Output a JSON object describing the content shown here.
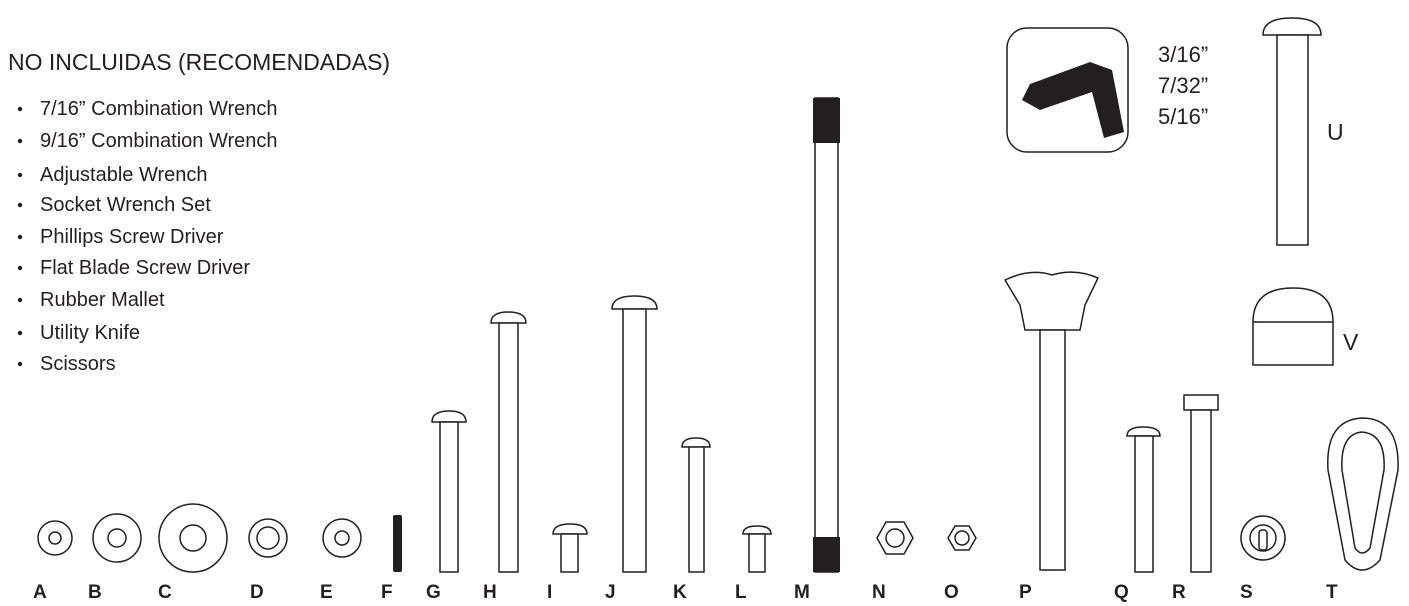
{
  "header": {
    "title": "NO INCLUIDAS (RECOMENDADAS)"
  },
  "tools": [
    "7/16” Combination Wrench",
    "9/16” Combination Wrench",
    "Adjustable Wrench",
    "Socket Wrench Set",
    "Phillips Screw Driver",
    "Flat Blade Screw Driver",
    "Rubber Mallet",
    "Utility Knife",
    "Scissors"
  ],
  "hex_keys": [
    "3/16”",
    "7/32”",
    "5/16”"
  ],
  "parts": [
    "A",
    "B",
    "C",
    "D",
    "E",
    "F",
    "G",
    "H",
    "I",
    "J",
    "K",
    "L",
    "M",
    "N",
    "O",
    "P",
    "Q",
    "R",
    "S",
    "T",
    "U",
    "V"
  ]
}
